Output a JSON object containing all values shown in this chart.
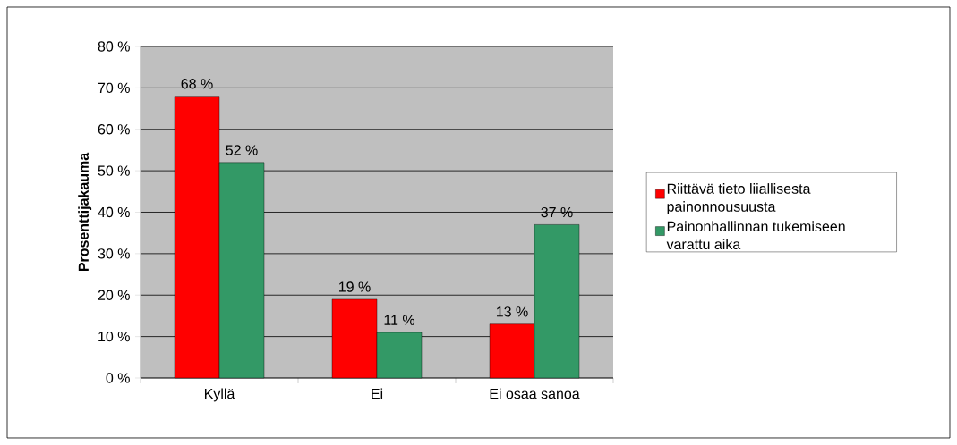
{
  "chart_data": {
    "type": "bar",
    "ylabel": "Prosenttijakauma",
    "categories": [
      "Kyllä",
      "Ei",
      "Ei osaa sanoa"
    ],
    "series": [
      {
        "name": "Riittävä tieto liiallisesta painonnousuusta",
        "color": "#ff0000",
        "values": [
          68,
          19,
          13
        ],
        "value_labels": [
          "68 %",
          "19 %",
          "13 %"
        ]
      },
      {
        "name": "Painonhallinnan tukemiseen varattu aika",
        "color": "#339966",
        "values": [
          52,
          11,
          37
        ],
        "value_labels": [
          "52 %",
          "11 %",
          "37 %"
        ]
      }
    ],
    "ylim": [
      0,
      80
    ],
    "yticks": [
      {
        "value": 0,
        "label": "0 %"
      },
      {
        "value": 10,
        "label": "10 %"
      },
      {
        "value": 20,
        "label": "20 %"
      },
      {
        "value": 30,
        "label": "30 %"
      },
      {
        "value": 40,
        "label": "40 %"
      },
      {
        "value": 50,
        "label": "50 %"
      },
      {
        "value": 60,
        "label": "60 %"
      },
      {
        "value": 70,
        "label": "70 %"
      },
      {
        "value": 80,
        "label": "80 %"
      }
    ],
    "grid": "y",
    "legend": "right"
  }
}
